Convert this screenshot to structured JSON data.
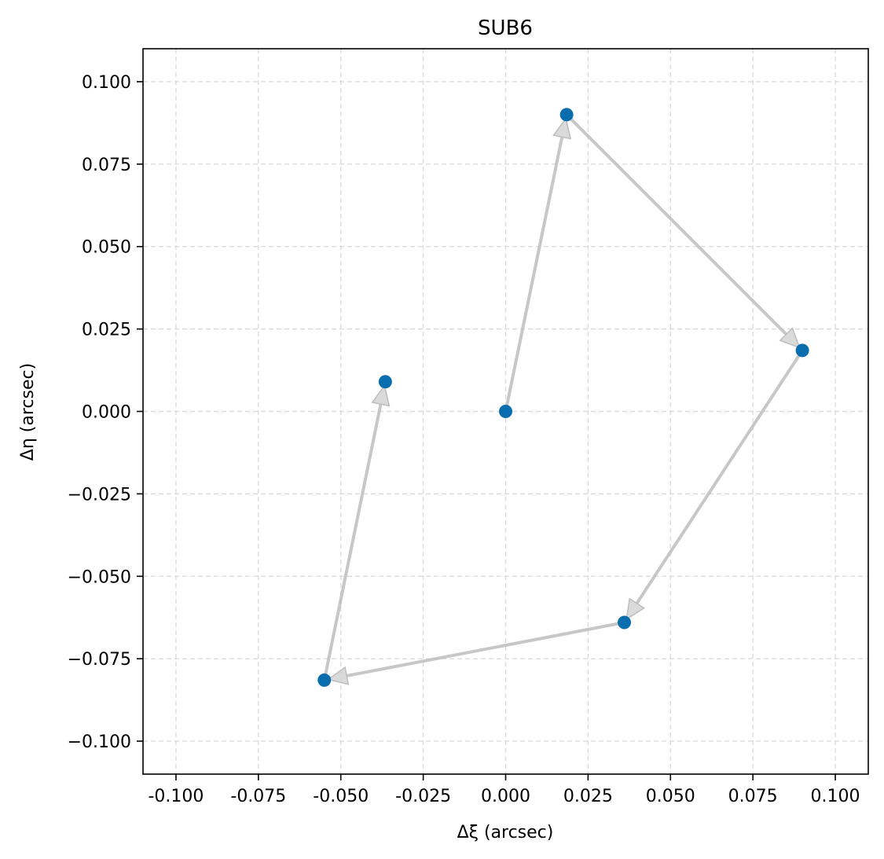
{
  "chart_data": {
    "type": "scatter",
    "title": "SUB6",
    "xlabel": "Δξ (arcsec)",
    "ylabel": "Δη (arcsec)",
    "xlim": [
      -0.11,
      0.11
    ],
    "ylim": [
      -0.11,
      0.11
    ],
    "x_ticks": [
      -0.1,
      -0.075,
      -0.05,
      -0.025,
      0.0,
      0.025,
      0.05,
      0.075,
      0.1
    ],
    "y_ticks": [
      -0.1,
      -0.075,
      -0.05,
      -0.025,
      0.0,
      0.025,
      0.05,
      0.075,
      0.1
    ],
    "x_tick_labels": [
      "-0.100",
      "-0.075",
      "-0.050",
      "-0.025",
      "0.000",
      "0.025",
      "0.050",
      "0.075",
      "0.100"
    ],
    "y_tick_labels": [
      "−0.100",
      "−0.075",
      "−0.050",
      "−0.025",
      "0.000",
      "0.025",
      "0.050",
      "0.075",
      "0.100"
    ],
    "grid": true,
    "point_color": "#0a6eae",
    "arrow_color": "#bdbdbd",
    "points": [
      {
        "x": 0.0,
        "y": 0.0
      },
      {
        "x": 0.0185,
        "y": 0.09
      },
      {
        "x": 0.09,
        "y": 0.0185
      },
      {
        "x": 0.036,
        "y": -0.064
      },
      {
        "x": -0.055,
        "y": -0.0815
      },
      {
        "x": -0.0365,
        "y": 0.009
      }
    ],
    "arrows": [
      {
        "from": 0,
        "to": 1
      },
      {
        "from": 1,
        "to": 2
      },
      {
        "from": 2,
        "to": 3
      },
      {
        "from": 3,
        "to": 4
      },
      {
        "from": 4,
        "to": 5
      }
    ]
  }
}
